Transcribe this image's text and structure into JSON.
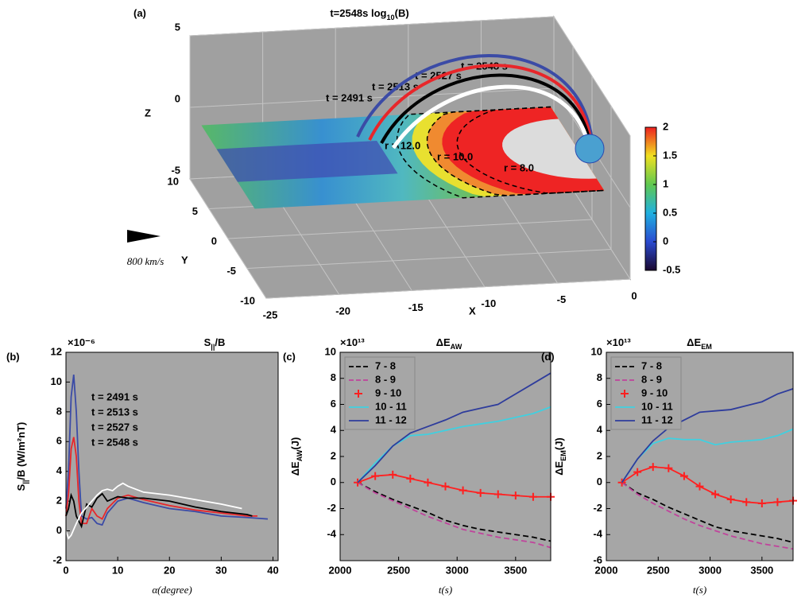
{
  "chart_data": [
    {
      "type": "3d",
      "label": "(a)",
      "title": "t=2548s  log",
      "title_sub": "10",
      "title_suffix": "(B)",
      "xlabel": "X",
      "ylabel": "Y",
      "zlabel": "Z",
      "xlim": [
        -25,
        0
      ],
      "ylim": [
        -10,
        10
      ],
      "zlim": [
        -5,
        5
      ],
      "xticks": [
        -25,
        -20,
        -15,
        -10,
        -5,
        0
      ],
      "yticks": [
        10,
        5,
        0,
        -5,
        -10
      ],
      "zticks": [
        5,
        0,
        -5
      ],
      "clim": [
        -0.5,
        2
      ],
      "cticks": [
        2,
        1.5,
        1,
        0.5,
        0,
        -0.5
      ],
      "annotations": [
        "t = 2548 s",
        "t = 2527 s",
        "t = 2513 s",
        "t = 2491 s",
        "r = 12.0",
        "r = 10.0",
        "r = 8.0"
      ],
      "annotation_colors": [
        "#ffffff",
        "#000000",
        "#e8262a",
        "#3b4ba6",
        "#000000",
        "#000000",
        "#000000"
      ],
      "scale_label": "800 km/s",
      "background": "#a0a0a0"
    },
    {
      "type": "line",
      "label": "(b)",
      "title": "S",
      "title_sub": "||",
      "title_suffix": "/B",
      "y_multiplier": "×10⁻⁶",
      "xlabel": "α(degree)",
      "ylabel": "S",
      "ylabel_sub": "||",
      "ylabel_suffix": "/B (W/m²nT)",
      "xlim": [
        0,
        41
      ],
      "ylim": [
        -2,
        12
      ],
      "xticks": [
        0,
        10,
        20,
        30,
        40
      ],
      "yticks": [
        -2,
        0,
        2,
        4,
        6,
        8,
        10,
        12
      ],
      "legend": "text",
      "background": "#a6a6a6",
      "series": [
        {
          "name": "t = 2491 s",
          "color": "#3b4ba6",
          "x": [
            0,
            0.5,
            1,
            1.5,
            2,
            2.5,
            3,
            4,
            5,
            6,
            7,
            8,
            10,
            12,
            15,
            20,
            25,
            30,
            35,
            39
          ],
          "values": [
            1.5,
            4,
            9,
            10.5,
            8,
            4,
            1,
            0.8,
            0.9,
            0.5,
            0.4,
            1.2,
            2,
            2.2,
            1.9,
            1.5,
            1.3,
            1,
            0.9,
            0.8
          ]
        },
        {
          "name": "t = 2513 s",
          "color": "#e8262a",
          "x": [
            0,
            0.5,
            1,
            1.5,
            2,
            2.5,
            3,
            4,
            5,
            6,
            7,
            8,
            10,
            12,
            15,
            20,
            25,
            30,
            35,
            37
          ],
          "values": [
            1,
            2.5,
            5.5,
            6.3,
            5,
            2,
            0.5,
            0.5,
            1.5,
            1,
            0.8,
            1.5,
            2.2,
            2.4,
            2.1,
            1.7,
            1.4,
            1.2,
            1,
            1
          ]
        },
        {
          "name": "t = 2527 s",
          "color": "#000000",
          "x": [
            0,
            0.5,
            1,
            1.5,
            2,
            3,
            4,
            5,
            6,
            7,
            8,
            10,
            12,
            15,
            20,
            25,
            30,
            35,
            36
          ],
          "values": [
            1,
            1.5,
            2.4,
            2,
            1,
            0.3,
            1.8,
            1.6,
            2.2,
            2.5,
            2,
            2.3,
            2.2,
            2.2,
            2,
            1.6,
            1.3,
            1.1,
            1
          ]
        },
        {
          "name": "t = 2548 s",
          "color": "#ffffff",
          "x": [
            0,
            0.5,
            1,
            2,
            3,
            4,
            5,
            6,
            7,
            8,
            9,
            10,
            11,
            12,
            15,
            20,
            25,
            30,
            34
          ],
          "values": [
            0,
            -0.5,
            -0.3,
            0.5,
            1.2,
            1.6,
            2,
            2.4,
            2.7,
            2.8,
            2.7,
            3,
            3.2,
            3,
            2.6,
            2.4,
            2.1,
            1.8,
            1.5
          ]
        }
      ]
    },
    {
      "type": "line",
      "label": "(c)",
      "title": "ΔE",
      "title_sub": "AW",
      "y_multiplier": "×10¹³",
      "xlabel": "t(s)",
      "ylabel": "ΔE",
      "ylabel_sub": "AW",
      "ylabel_suffix": "(J)",
      "xlim": [
        2000,
        3800
      ],
      "ylim": [
        -6,
        10
      ],
      "xticks": [
        2000,
        2500,
        3000,
        3500
      ],
      "yticks": [
        -4,
        -2,
        0,
        2,
        4,
        6,
        8,
        10
      ],
      "legend": "upper-left",
      "background": "#a6a6a6",
      "x": [
        2150,
        2300,
        2450,
        2600,
        2750,
        2900,
        3050,
        3200,
        3350,
        3500,
        3650,
        3800
      ],
      "series": [
        {
          "name": "7 - 8",
          "color": "#000000",
          "linestyle": "dashed",
          "values": [
            0,
            -0.7,
            -1.3,
            -1.8,
            -2.3,
            -2.9,
            -3.3,
            -3.6,
            -3.8,
            -4,
            -4.2,
            -4.5
          ]
        },
        {
          "name": "8 - 9",
          "color": "#c0449c",
          "linestyle": "dashed",
          "values": [
            0,
            -0.8,
            -1.4,
            -2,
            -2.6,
            -3.1,
            -3.6,
            -3.9,
            -4.2,
            -4.4,
            -4.6,
            -5
          ]
        },
        {
          "name": "9 - 10",
          "color": "#ff2020",
          "linestyle": "solid",
          "marker": "+",
          "values": [
            0,
            0.5,
            0.6,
            0.3,
            0,
            -0.3,
            -0.6,
            -0.8,
            -0.9,
            -1,
            -1.1,
            -1.1
          ]
        },
        {
          "name": "10 - 11",
          "color": "#40d0e0",
          "linestyle": "solid",
          "values": [
            0,
            1.5,
            2.8,
            3.6,
            3.7,
            4,
            4.3,
            4.5,
            4.7,
            5,
            5.3,
            5.8
          ]
        },
        {
          "name": "11 - 12",
          "color": "#2e3c9c",
          "linestyle": "solid",
          "values": [
            0,
            1.3,
            2.8,
            3.8,
            4.3,
            4.8,
            5.4,
            5.7,
            6,
            6.8,
            7.6,
            8.4
          ]
        }
      ]
    },
    {
      "type": "line",
      "label": "(d)",
      "title": "ΔE",
      "title_sub": "EM",
      "y_multiplier": "×10¹³",
      "xlabel": "t(s)",
      "ylabel": "ΔE",
      "ylabel_sub": "EM",
      "ylabel_suffix": "(J)",
      "xlim": [
        2000,
        3800
      ],
      "ylim": [
        -6,
        10
      ],
      "xticks": [
        2000,
        2500,
        3000,
        3500
      ],
      "yticks": [
        -6,
        -4,
        -2,
        0,
        2,
        4,
        6,
        8,
        10
      ],
      "legend": "upper-left",
      "background": "#a6a6a6",
      "x": [
        2150,
        2300,
        2450,
        2600,
        2750,
        2900,
        3050,
        3200,
        3350,
        3500,
        3650,
        3800
      ],
      "series": [
        {
          "name": "7 - 8",
          "color": "#000000",
          "linestyle": "dashed",
          "values": [
            0,
            -0.8,
            -1.3,
            -1.9,
            -2.4,
            -2.9,
            -3.4,
            -3.7,
            -3.9,
            -4.1,
            -4.3,
            -4.6
          ]
        },
        {
          "name": "8 - 9",
          "color": "#c0449c",
          "linestyle": "dashed",
          "values": [
            0,
            -0.9,
            -1.6,
            -2.2,
            -2.8,
            -3.3,
            -3.7,
            -4.1,
            -4.4,
            -4.7,
            -4.9,
            -5.1
          ]
        },
        {
          "name": "9 - 10",
          "color": "#ff2020",
          "linestyle": "solid",
          "marker": "+",
          "values": [
            0,
            0.8,
            1.2,
            1.1,
            0.5,
            -0.3,
            -0.9,
            -1.3,
            -1.5,
            -1.6,
            -1.5,
            -1.4
          ]
        },
        {
          "name": "10 - 11",
          "color": "#40d0e0",
          "linestyle": "solid",
          "values": [
            0,
            1.8,
            3,
            3.4,
            3.3,
            3.3,
            2.9,
            3.1,
            3.2,
            3.3,
            3.6,
            4.1
          ]
        },
        {
          "name": "11 - 12",
          "color": "#2e3c9c",
          "linestyle": "solid",
          "values": [
            0,
            1.8,
            3.2,
            4.2,
            4.8,
            5.4,
            5.5,
            5.6,
            5.9,
            6.2,
            6.8,
            7.2
          ]
        }
      ]
    }
  ]
}
